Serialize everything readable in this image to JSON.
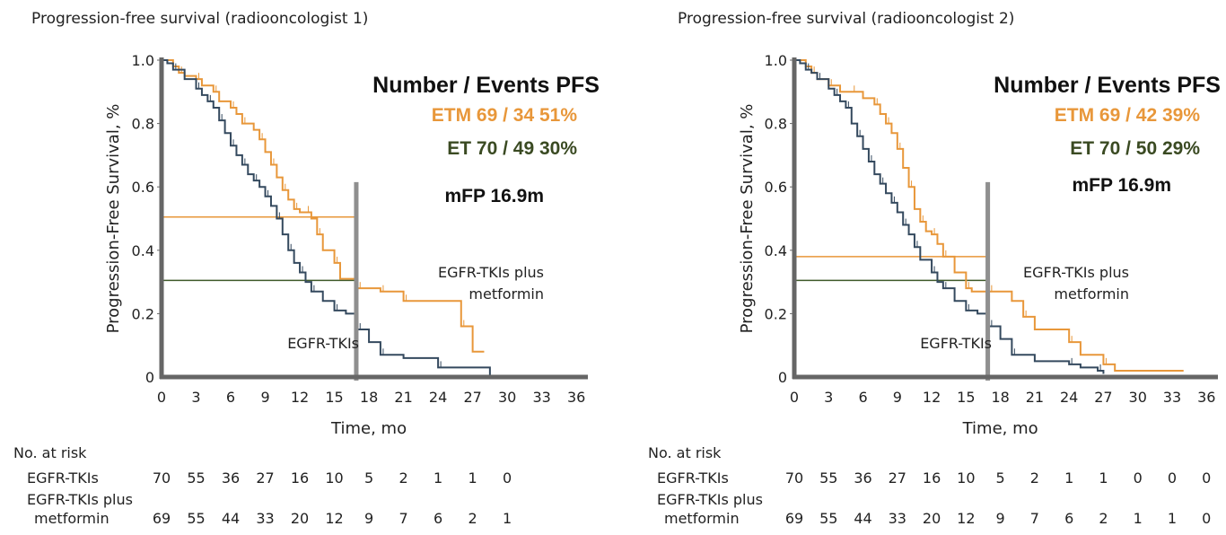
{
  "colors": {
    "etm": "#e8973a",
    "et": "#34495e",
    "et_legend": "#3a4a22",
    "axis": "#666666",
    "ref_line": "#8f8f8f"
  },
  "chart_data": [
    {
      "type": "line",
      "title": "Progression-free survival (radiooncologist 1)",
      "xlabel": "Time, mo",
      "ylabel": "Progression-Free Survival, %",
      "xlim": [
        0,
        37
      ],
      "ylim": [
        0,
        1.0
      ],
      "xticks": [
        "0",
        "3",
        "6",
        "9",
        "12",
        "15",
        "18",
        "21",
        "24",
        "27",
        "30",
        "33",
        "36"
      ],
      "yticks": [
        "0",
        "0.2",
        "0.4",
        "0.6",
        "0.8",
        "1.0"
      ],
      "legend": {
        "header": "Number / Events    PFS",
        "rows": [
          {
            "label": "ETM 69 / 34  51%",
            "series": "EGFR-TKIs plus metformin"
          },
          {
            "label": "ET  70 / 49   30%",
            "series": "EGFR-TKIs"
          }
        ],
        "note": "mFP 16.9m"
      },
      "annotations": {
        "etm": [
          "EGFR-TKIs plus",
          "metformin"
        ],
        "et": "EGFR-TKIs"
      },
      "reference_x": 16.9,
      "hlines": [
        {
          "y": 0.505,
          "series": "EGFR-TKIs plus metformin",
          "x_end": 16.9
        },
        {
          "y": 0.305,
          "series": "EGFR-TKIs",
          "x_end": 16.9
        }
      ],
      "series": [
        {
          "name": "EGFR-TKIs plus metformin",
          "color_key": "etm",
          "x": [
            0,
            1,
            1.5,
            2,
            3,
            3.5,
            4.5,
            5,
            6,
            6.5,
            7,
            8,
            8.5,
            9,
            9.5,
            10,
            10.5,
            11,
            11.5,
            12,
            12.5,
            13,
            13.5,
            14,
            15,
            15.5,
            17,
            18,
            19,
            20,
            21,
            24,
            26,
            27,
            28
          ],
          "y": [
            1.0,
            0.98,
            0.96,
            0.95,
            0.94,
            0.92,
            0.9,
            0.87,
            0.85,
            0.83,
            0.8,
            0.78,
            0.75,
            0.71,
            0.67,
            0.63,
            0.59,
            0.56,
            0.53,
            0.52,
            0.52,
            0.5,
            0.45,
            0.4,
            0.36,
            0.31,
            0.28,
            0.28,
            0.27,
            0.27,
            0.24,
            0.24,
            0.16,
            0.08,
            0.08
          ]
        },
        {
          "name": "EGFR-TKIs",
          "color_key": "et",
          "x": [
            0,
            0.5,
            1,
            2,
            3,
            3.5,
            4,
            4.5,
            5,
            5.5,
            6,
            6.5,
            7,
            7.5,
            8,
            8.5,
            9,
            9.5,
            10,
            10.5,
            11,
            11.5,
            12,
            12.5,
            13,
            14,
            15,
            16,
            17,
            18,
            19,
            21,
            24,
            28,
            28.5
          ],
          "y": [
            1.0,
            0.99,
            0.97,
            0.94,
            0.91,
            0.89,
            0.87,
            0.85,
            0.81,
            0.77,
            0.73,
            0.7,
            0.67,
            0.64,
            0.62,
            0.6,
            0.57,
            0.54,
            0.5,
            0.45,
            0.4,
            0.36,
            0.33,
            0.3,
            0.27,
            0.24,
            0.21,
            0.2,
            0.15,
            0.11,
            0.07,
            0.06,
            0.03,
            0.03,
            0.0
          ]
        }
      ],
      "risk_table": {
        "title": "No. at risk",
        "rows": [
          {
            "label": [
              "EGFR-TKIs"
            ],
            "values": [
              "70",
              "55",
              "36",
              "27",
              "16",
              "10",
              "5",
              "2",
              "1",
              "1",
              "0"
            ]
          },
          {
            "label": [
              "EGFR-TKIs plus",
              "metformin"
            ],
            "values": [
              "69",
              "55",
              "44",
              "33",
              "20",
              "12",
              "9",
              "7",
              "6",
              "2",
              "1"
            ]
          }
        ]
      }
    },
    {
      "type": "line",
      "title": "Progression-free survival (radiooncologist 2)",
      "xlabel": "Time, mo",
      "ylabel": "Progression-Free Survival, %",
      "xlim": [
        0,
        37
      ],
      "ylim": [
        0,
        1.0
      ],
      "xticks": [
        "0",
        "3",
        "6",
        "9",
        "12",
        "15",
        "18",
        "21",
        "24",
        "27",
        "30",
        "33",
        "36"
      ],
      "yticks": [
        "0",
        "0.2",
        "0.4",
        "0.6",
        "0.8",
        "1.0"
      ],
      "legend": {
        "header": "Number / Events    PFS",
        "rows": [
          {
            "label": "ETM 69 / 42  39%",
            "series": "EGFR-TKIs plus metformin"
          },
          {
            "label": "ET  70 / 50   29%",
            "series": "EGFR-TKIs"
          }
        ],
        "note": "mFP 16.9m"
      },
      "annotations": {
        "etm": [
          "EGFR-TKIs plus",
          "metformin"
        ],
        "et": "EGFR-TKIs"
      },
      "reference_x": 16.9,
      "hlines": [
        {
          "y": 0.38,
          "series": "EGFR-TKIs plus metformin",
          "x_end": 16.9
        },
        {
          "y": 0.305,
          "series": "EGFR-TKIs",
          "x_end": 16.9
        }
      ],
      "series": [
        {
          "name": "EGFR-TKIs plus metformin",
          "color_key": "etm",
          "x": [
            0,
            1,
            1.5,
            2,
            3,
            4,
            5,
            6,
            7,
            7.5,
            8,
            8.5,
            9,
            9.5,
            10,
            10.5,
            11,
            11.5,
            12,
            12.5,
            13,
            14,
            15,
            15.5,
            17,
            19,
            20,
            21,
            24,
            25,
            27,
            28,
            34
          ],
          "y": [
            1.0,
            0.98,
            0.96,
            0.94,
            0.92,
            0.9,
            0.9,
            0.88,
            0.86,
            0.83,
            0.8,
            0.77,
            0.72,
            0.66,
            0.6,
            0.53,
            0.49,
            0.46,
            0.45,
            0.42,
            0.38,
            0.33,
            0.28,
            0.27,
            0.27,
            0.24,
            0.19,
            0.15,
            0.11,
            0.07,
            0.04,
            0.02,
            0.02
          ]
        },
        {
          "name": "EGFR-TKIs",
          "color_key": "et",
          "x": [
            0,
            0.5,
            1,
            1.5,
            2,
            3,
            3.5,
            4,
            4.5,
            5,
            5.5,
            6,
            6.5,
            7,
            7.5,
            8,
            8.5,
            9,
            9.5,
            10,
            10.5,
            11,
            12,
            12.5,
            13,
            14,
            15,
            16,
            17,
            18,
            19,
            21,
            24,
            25,
            26.5,
            27
          ],
          "y": [
            1.0,
            0.99,
            0.97,
            0.96,
            0.94,
            0.91,
            0.89,
            0.87,
            0.85,
            0.8,
            0.76,
            0.72,
            0.68,
            0.64,
            0.61,
            0.58,
            0.55,
            0.52,
            0.48,
            0.45,
            0.41,
            0.37,
            0.33,
            0.3,
            0.28,
            0.24,
            0.21,
            0.2,
            0.16,
            0.12,
            0.07,
            0.05,
            0.04,
            0.03,
            0.02,
            0.01
          ]
        }
      ],
      "risk_table": {
        "title": "No. at risk",
        "rows": [
          {
            "label": [
              "EGFR-TKIs"
            ],
            "values": [
              "70",
              "55",
              "36",
              "27",
              "16",
              "10",
              "5",
              "2",
              "1",
              "1",
              "0",
              "0",
              "0"
            ]
          },
          {
            "label": [
              "EGFR-TKIs plus",
              "metformin"
            ],
            "values": [
              "69",
              "55",
              "44",
              "33",
              "20",
              "12",
              "9",
              "7",
              "6",
              "2",
              "1",
              "1",
              "0"
            ]
          }
        ]
      }
    }
  ]
}
